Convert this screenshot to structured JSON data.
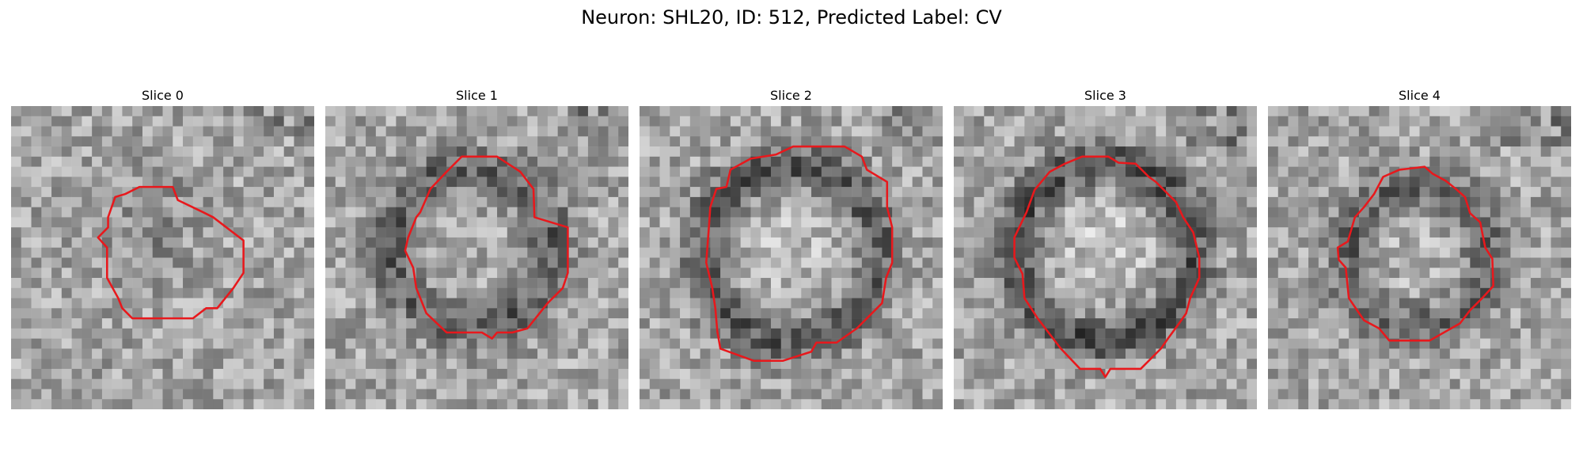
{
  "title": "Neuron: SHL20, ID: 512, Predicted Label: CV",
  "panels": [
    {
      "title": "Slice 0"
    },
    {
      "title": "Slice 1"
    },
    {
      "title": "Slice 2"
    },
    {
      "title": "Slice 3"
    },
    {
      "title": "Slice 4"
    }
  ],
  "colors": {
    "contour": "#e8181c",
    "background": "#ffffff",
    "image": "grayscale"
  }
}
